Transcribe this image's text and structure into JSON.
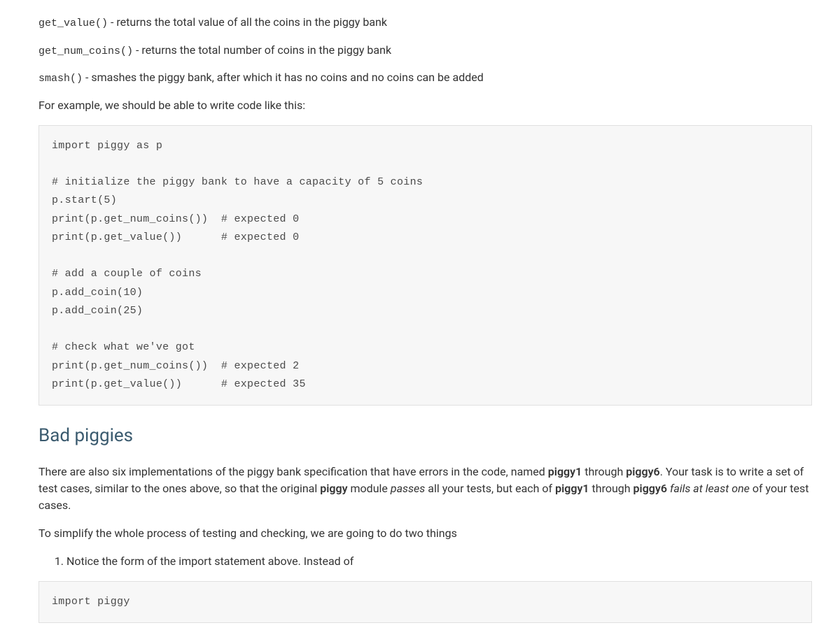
{
  "methods": [
    {
      "name": "get_value()",
      "desc": " - returns the total value of all the coins in the piggy bank"
    },
    {
      "name": "get_num_coins()",
      "desc": " - returns the total number of coins in the piggy bank"
    },
    {
      "name": "smash()",
      "desc": " - smashes the piggy bank, after which it has no coins and no coins can be added"
    }
  ],
  "intro_line": "For example, we should be able to write code like this:",
  "code_example": "import piggy as p\n\n# initialize the piggy bank to have a capacity of 5 coins\np.start(5)\nprint(p.get_num_coins())  # expected 0\nprint(p.get_value())      # expected 0\n\n# add a couple of coins\np.add_coin(10)\np.add_coin(25)\n\n# check what we've got\nprint(p.get_num_coins())  # expected 2\nprint(p.get_value())      # expected 35",
  "section_heading": "Bad piggies",
  "bad_piggies_para": {
    "t1": "There are also six implementations of the piggy bank specification that have errors in the code, named ",
    "b1": "piggy1",
    "t2": " through ",
    "b2": "piggy6",
    "t3": ". Your task is to write a set of test cases, similar to the ones above, so that the original ",
    "b3": "piggy",
    "t4": " module ",
    "i1": "passes",
    "t5": " all your tests, but each of ",
    "b4": "piggy1",
    "t6": " through ",
    "b5": "piggy6",
    "t7": " ",
    "i2": "fails at least one",
    "t8": " of your test cases."
  },
  "simplify_line": "To simplify the whole process of testing and checking, we are going to do two things",
  "list_item_1": "Notice the form of the import statement above. Instead of",
  "code_import": "import piggy"
}
